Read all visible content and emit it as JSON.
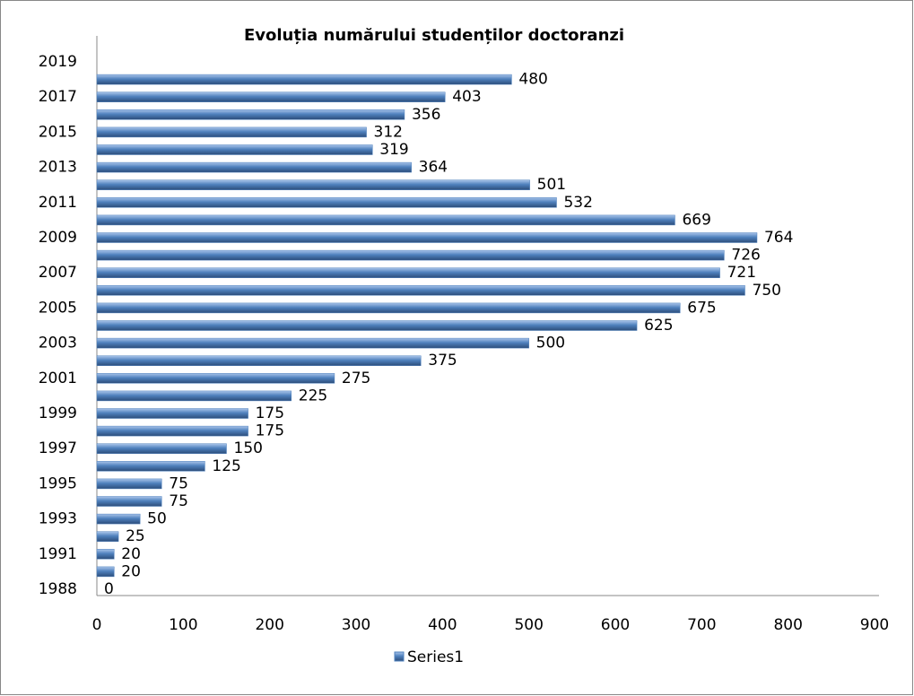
{
  "chart_data": {
    "type": "bar",
    "orientation": "horizontal",
    "title": "Evoluția numărului studenților doctoranzi",
    "categories": [
      "1988",
      null,
      "1991",
      null,
      "1993",
      null,
      "1995",
      null,
      "1997",
      null,
      "1999",
      null,
      "2001",
      null,
      "2003",
      null,
      "2005",
      null,
      "2007",
      null,
      "2009",
      null,
      "2011",
      null,
      "2013",
      null,
      "2015",
      null,
      "2017",
      null,
      "2019"
    ],
    "series": [
      {
        "name": "Series1",
        "color": "#4f81bd",
        "values": [
          0,
          20,
          20,
          25,
          50,
          75,
          75,
          125,
          150,
          175,
          175,
          225,
          275,
          375,
          500,
          625,
          675,
          750,
          721,
          726,
          764,
          669,
          532,
          501,
          364,
          319,
          312,
          356,
          403,
          480,
          null
        ]
      }
    ],
    "xlim": [
      0,
      900
    ],
    "xticks": [
      0,
      100,
      200,
      300,
      400,
      500,
      600,
      700,
      800,
      900
    ],
    "legend": "bottom"
  }
}
